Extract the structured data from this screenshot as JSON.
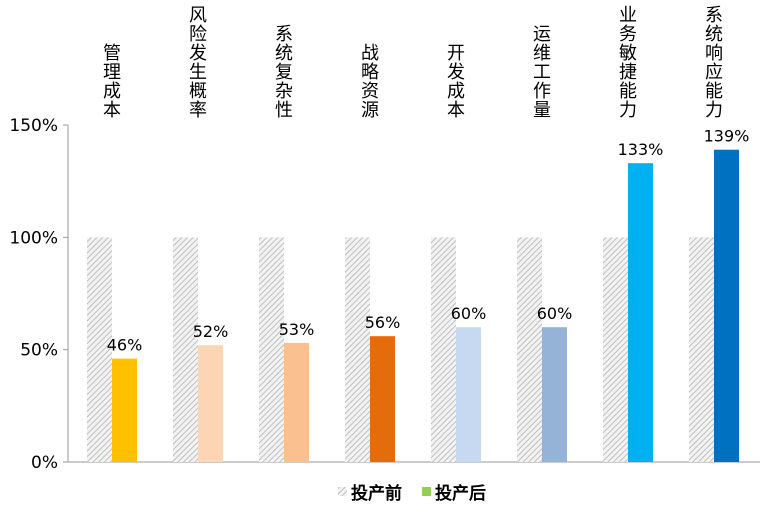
{
  "chart_data": {
    "type": "bar",
    "categories": [
      "管理成本",
      "风险发生概率",
      "系统复杂性",
      "战略资源",
      "开发成本",
      "运维工作量",
      "业务敏捷能力",
      "系统响应能力"
    ],
    "series": [
      {
        "name": "投产前",
        "values": [
          100,
          100,
          100,
          100,
          100,
          100,
          100,
          100
        ],
        "pattern": "gray-hatch"
      },
      {
        "name": "投产后",
        "values": [
          46,
          52,
          53,
          56,
          60,
          60,
          133,
          139
        ],
        "legend_color": "#92D050",
        "colors": [
          "#FFC000",
          "#FCD5B5",
          "#FAC090",
          "#E46C0A",
          "#C6D9F1",
          "#95B3D7",
          "#00B0F0",
          "#0070C0"
        ]
      }
    ],
    "data_labels": [
      "46%",
      "52%",
      "53%",
      "56%",
      "60%",
      "60%",
      "133%",
      "139%"
    ],
    "yticks": [
      "0%",
      "50%",
      "100%",
      "150%"
    ],
    "ylim": [
      0,
      150
    ],
    "grid": false,
    "legend_position": "bottom"
  }
}
